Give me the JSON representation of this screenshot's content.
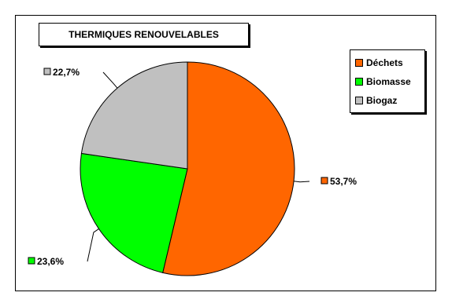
{
  "chart_data": {
    "type": "pie",
    "title": "THERMIQUES RENOUVELABLES",
    "slices": [
      {
        "label": "Déchets",
        "value": 53.7,
        "display": "53,7%",
        "color": "#FF6600"
      },
      {
        "label": "Biomasse",
        "value": 23.6,
        "display": "23,6%",
        "color": "#00FF00"
      },
      {
        "label": "Biogaz",
        "value": 22.7,
        "display": "22,7%",
        "color": "#C0C0C0"
      }
    ],
    "legend_position": "right"
  }
}
